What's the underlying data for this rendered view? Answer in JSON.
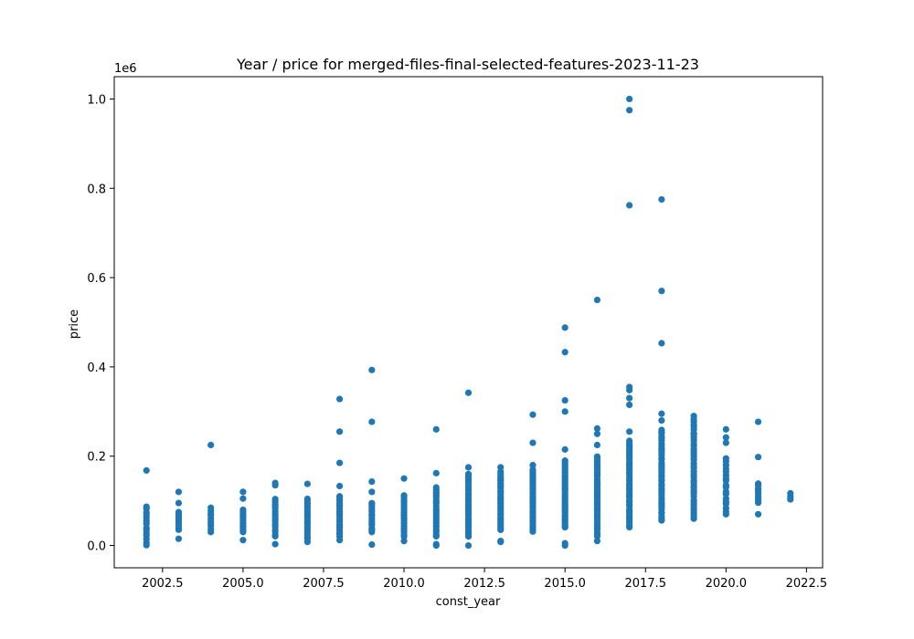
{
  "chart_data": {
    "type": "scatter",
    "title": "Year / price for merged-files-final-selected-features-2023-11-23",
    "xlabel": "const_year",
    "ylabel": "price",
    "y_offset_label": "1e6",
    "xlim": [
      2001.0,
      2023.0
    ],
    "ylim": [
      -50000,
      1050000
    ],
    "x_ticks": [
      2002.5,
      2005.0,
      2007.5,
      2010.0,
      2012.5,
      2015.0,
      2017.5,
      2020.0,
      2022.5
    ],
    "x_tick_labels": [
      "2002.5",
      "2005.0",
      "2007.5",
      "2010.0",
      "2012.5",
      "2015.0",
      "2017.5",
      "2020.0",
      "2022.5"
    ],
    "y_ticks": [
      0,
      200000,
      400000,
      600000,
      800000,
      1000000
    ],
    "y_tick_labels": [
      "0.0",
      "0.2",
      "0.4",
      "0.6",
      "0.8",
      "1.0"
    ],
    "grid": false,
    "marker_color": "#1f77b4",
    "x_values": [
      2002,
      2003,
      2004,
      2005,
      2006,
      2007,
      2008,
      2009,
      2010,
      2011,
      2012,
      2013,
      2014,
      2015,
      2016,
      2017,
      2018,
      2019,
      2020,
      2021,
      2022
    ],
    "groups": [
      {
        "x": 2002,
        "range": [
          0,
          88000
        ],
        "n": 14,
        "extra": [
          168000
        ]
      },
      {
        "x": 2003,
        "range": [
          35000,
          75000
        ],
        "n": 10,
        "extra": [
          15000,
          95000,
          120000
        ]
      },
      {
        "x": 2004,
        "range": [
          30000,
          85000
        ],
        "n": 10,
        "extra": [
          225000
        ]
      },
      {
        "x": 2005,
        "range": [
          30000,
          80000
        ],
        "n": 12,
        "extra": [
          12000,
          105000,
          120000
        ]
      },
      {
        "x": 2006,
        "range": [
          20000,
          105000
        ],
        "n": 16,
        "extra": [
          3000,
          135000,
          140000
        ]
      },
      {
        "x": 2007,
        "range": [
          15000,
          105000
        ],
        "n": 18,
        "extra": [
          8000,
          138000
        ]
      },
      {
        "x": 2008,
        "range": [
          20000,
          110000
        ],
        "n": 20,
        "extra": [
          12000,
          133000,
          185000,
          255000,
          328000
        ]
      },
      {
        "x": 2009,
        "range": [
          30000,
          95000
        ],
        "n": 14,
        "extra": [
          2000,
          120000,
          143000,
          277000,
          393000
        ]
      },
      {
        "x": 2010,
        "range": [
          20000,
          112000
        ],
        "n": 18,
        "extra": [
          10000,
          150000
        ]
      },
      {
        "x": 2011,
        "range": [
          20000,
          130000
        ],
        "n": 22,
        "extra": [
          0,
          3000,
          162000,
          260000
        ]
      },
      {
        "x": 2012,
        "range": [
          20000,
          160000
        ],
        "n": 30,
        "extra": [
          0,
          175000,
          342000
        ]
      },
      {
        "x": 2013,
        "range": [
          35000,
          165000
        ],
        "n": 32,
        "extra": [
          8000,
          10000,
          175000
        ]
      },
      {
        "x": 2014,
        "range": [
          30000,
          170000
        ],
        "n": 34,
        "extra": [
          180000,
          230000,
          293000
        ]
      },
      {
        "x": 2015,
        "range": [
          40000,
          190000
        ],
        "n": 38,
        "extra": [
          0,
          5000,
          215000,
          300000,
          325000,
          433000,
          488000
        ]
      },
      {
        "x": 2016,
        "range": [
          20000,
          200000
        ],
        "n": 40,
        "extra": [
          10000,
          225000,
          250000,
          262000,
          550000
        ]
      },
      {
        "x": 2017,
        "range": [
          40000,
          235000
        ],
        "n": 42,
        "extra": [
          255000,
          315000,
          330000,
          348000,
          355000,
          762000,
          975000,
          1000000
        ]
      },
      {
        "x": 2018,
        "range": [
          55000,
          260000
        ],
        "n": 40,
        "extra": [
          280000,
          295000,
          453000,
          570000,
          775000
        ]
      },
      {
        "x": 2019,
        "range": [
          60000,
          290000
        ],
        "n": 38,
        "extra": []
      },
      {
        "x": 2020,
        "range": [
          70000,
          195000
        ],
        "n": 18,
        "extra": [
          230000,
          242000,
          260000
        ]
      },
      {
        "x": 2021,
        "range": [
          95000,
          140000
        ],
        "n": 8,
        "extra": [
          70000,
          198000,
          277000
        ]
      },
      {
        "x": 2022,
        "range": [
          103000,
          117000
        ],
        "n": 3,
        "extra": []
      }
    ]
  }
}
